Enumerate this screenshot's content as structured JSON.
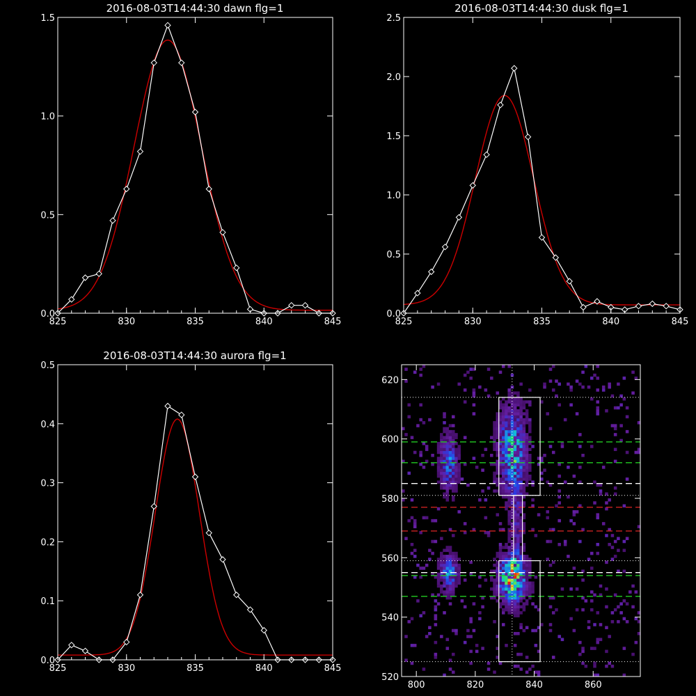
{
  "colors": {
    "background": "#000000",
    "axes": "#ffffff",
    "data_line": "#ffffff",
    "fit_line": "#cc0000",
    "guide_green": "#22cc22",
    "guide_red": "#cc2222",
    "guide_white": "#ffffff"
  },
  "chart_data": [
    {
      "type": "line",
      "title": "2016-08-03T14:44:30 dawn flg=1",
      "xlim": [
        825,
        845
      ],
      "ylim": [
        0,
        1.5
      ],
      "xticks": [
        "825",
        "830",
        "835",
        "840",
        "845"
      ],
      "yticks": [
        "0.0",
        "0.5",
        "1.0",
        "1.5"
      ],
      "series": [
        {
          "role": "data",
          "marker": "diamond",
          "x": [
            825,
            826,
            827,
            828,
            829,
            830,
            831,
            832,
            833,
            834,
            835,
            836,
            837,
            838,
            839,
            840,
            841,
            842,
            843,
            844,
            845
          ],
          "y": [
            0.0,
            0.07,
            0.18,
            0.2,
            0.47,
            0.63,
            0.82,
            1.27,
            1.46,
            1.27,
            1.02,
            0.63,
            0.41,
            0.23,
            0.02,
            0.0,
            0.0,
            0.04,
            0.04,
            0.0,
            0.0
          ]
        },
        {
          "role": "fit",
          "gauss": {
            "amp": 1.37,
            "center": 833.0,
            "sigma": 2.45,
            "offset": 0.015
          }
        }
      ]
    },
    {
      "type": "line",
      "title": "2016-08-03T14:44:30 dusk flg=1",
      "xlim": [
        825,
        845
      ],
      "ylim": [
        0,
        2.5
      ],
      "xticks": [
        "825",
        "830",
        "835",
        "840",
        "845"
      ],
      "yticks": [
        "0.0",
        "0.5",
        "1.0",
        "1.5",
        "2.0",
        "2.5"
      ],
      "series": [
        {
          "role": "data",
          "marker": "diamond",
          "x": [
            825,
            826,
            827,
            828,
            829,
            830,
            831,
            832,
            833,
            834,
            835,
            836,
            837,
            838,
            839,
            840,
            841,
            842,
            843,
            844,
            845
          ],
          "y": [
            0.0,
            0.17,
            0.35,
            0.56,
            0.81,
            1.08,
            1.34,
            1.76,
            2.07,
            1.49,
            0.64,
            0.47,
            0.27,
            0.05,
            0.1,
            0.05,
            0.03,
            0.06,
            0.08,
            0.06,
            0.03
          ]
        },
        {
          "role": "fit",
          "gauss": {
            "amp": 1.77,
            "center": 832.3,
            "sigma": 2.1,
            "offset": 0.07
          }
        }
      ]
    },
    {
      "type": "line",
      "title": "2016-08-03T14:44:30 aurora flg=1",
      "xlim": [
        825,
        845
      ],
      "ylim": [
        0,
        0.5
      ],
      "xticks": [
        "825",
        "830",
        "835",
        "840",
        "845"
      ],
      "yticks": [
        "0.0",
        "0.1",
        "0.2",
        "0.3",
        "0.4",
        "0.5"
      ],
      "series": [
        {
          "role": "data",
          "marker": "diamond",
          "x": [
            825,
            826,
            827,
            828,
            829,
            830,
            831,
            832,
            833,
            834,
            835,
            836,
            837,
            838,
            839,
            840,
            841,
            842,
            843,
            844,
            845
          ],
          "y": [
            0.0,
            0.025,
            0.015,
            0.0,
            0.0,
            0.03,
            0.11,
            0.26,
            0.43,
            0.415,
            0.31,
            0.215,
            0.17,
            0.11,
            0.085,
            0.05,
            0.0,
            0.0,
            0.0,
            0.0,
            0.0
          ]
        },
        {
          "role": "fit",
          "gauss": {
            "amp": 0.4,
            "center": 833.7,
            "sigma": 1.6,
            "offset": 0.008
          }
        }
      ]
    },
    {
      "type": "heatmap",
      "title": "",
      "xlim": [
        795,
        876
      ],
      "ylim": [
        520,
        625
      ],
      "xticks": [
        "800",
        "820",
        "840",
        "860"
      ],
      "yticks": [
        "520",
        "540",
        "560",
        "580",
        "600",
        "620"
      ],
      "vertical_guides": [
        832.5
      ],
      "horizontal_guides": [
        {
          "y": 614,
          "color": "white",
          "style": "dotted"
        },
        {
          "y": 599,
          "color": "green",
          "style": "dashed"
        },
        {
          "y": 592,
          "color": "green",
          "style": "dashed"
        },
        {
          "y": 585,
          "color": "white",
          "style": "dashed"
        },
        {
          "y": 581,
          "color": "white",
          "style": "dotted"
        },
        {
          "y": 577,
          "color": "red",
          "style": "dashed"
        },
        {
          "y": 569,
          "color": "red",
          "style": "dashed"
        },
        {
          "y": 559,
          "color": "white",
          "style": "dotted"
        },
        {
          "y": 555,
          "color": "white",
          "style": "dashed"
        },
        {
          "y": 554,
          "color": "green",
          "style": "dashed"
        },
        {
          "y": 547,
          "color": "green",
          "style": "dashed"
        },
        {
          "y": 525,
          "color": "white",
          "style": "dotted"
        }
      ],
      "boxes": [
        {
          "x": [
            828,
            842
          ],
          "y": [
            581,
            614
          ]
        },
        {
          "x": [
            828,
            842
          ],
          "y": [
            525,
            559
          ]
        },
        {
          "x": [
            833,
            836
          ],
          "y": [
            559,
            581
          ]
        }
      ],
      "blobs": [
        {
          "cx": 832.5,
          "cy": 596,
          "rx": 3.0,
          "ry": 9,
          "amp": 0.7
        },
        {
          "cx": 832.5,
          "cy": 553,
          "rx": 3.0,
          "ry": 5,
          "amp": 1.0
        },
        {
          "cx": 811,
          "cy": 592,
          "rx": 2.0,
          "ry": 6,
          "amp": 0.5
        },
        {
          "cx": 811,
          "cy": 555,
          "rx": 2.0,
          "ry": 4,
          "amp": 0.55
        },
        {
          "cx": 834,
          "cy": 570,
          "rx": 1.5,
          "ry": 14,
          "amp": 0.25
        }
      ]
    }
  ]
}
